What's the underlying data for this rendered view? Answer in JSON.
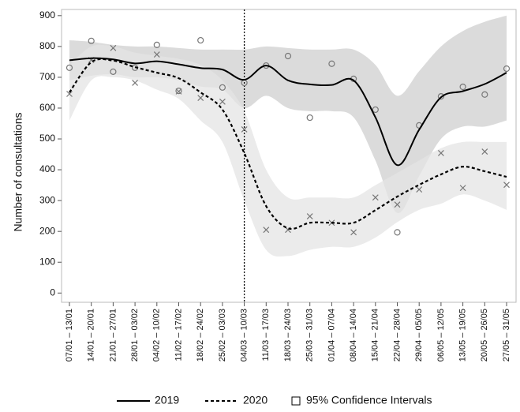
{
  "chart_data": {
    "type": "line",
    "ylabel": "Number of consultations",
    "categories": [
      "07/01 – 13/01",
      "14/01 – 20/01",
      "21/01 – 27/01",
      "28/01 – 03/02",
      "04/02 – 10/02",
      "11/02 – 17/02",
      "18/02 – 24/02",
      "25/02 – 03/03",
      "04/03 – 10/03",
      "11/03 – 17/03",
      "18/03 – 24/03",
      "25/03 – 31/03",
      "01/04 – 07/04",
      "08/04 – 14/04",
      "15/04 – 21/04",
      "22/04 – 28/04",
      "29/04 – 05/05",
      "06/05 – 12/05",
      "13/05 – 19/05",
      "20/05 – 26/05",
      "27/05 – 31/05"
    ],
    "series": [
      {
        "name": "2019",
        "color": "#000000",
        "dashed": false,
        "marker": "circle",
        "band_color": "#cfcfcf",
        "values": [
          755,
          762,
          758,
          745,
          752,
          742,
          730,
          725,
          692,
          738,
          690,
          677,
          675,
          690,
          570,
          415,
          530,
          635,
          655,
          678,
          715
        ],
        "observed": [
          731,
          818,
          718,
          731,
          805,
          656,
          820,
          667,
          682,
          738,
          769,
          569,
          744,
          695,
          595,
          197,
          544,
          638,
          669,
          644,
          728
        ],
        "ci_lower": [
          690,
          705,
          710,
          700,
          700,
          690,
          670,
          660,
          600,
          640,
          600,
          590,
          590,
          570,
          430,
          260,
          380,
          500,
          540,
          540,
          560
        ],
        "ci_upper": [
          820,
          815,
          805,
          800,
          800,
          795,
          790,
          790,
          790,
          800,
          795,
          790,
          790,
          790,
          740,
          640,
          720,
          800,
          850,
          880,
          900
        ]
      },
      {
        "name": "2020",
        "color": "#000000",
        "dashed": true,
        "marker": "cross",
        "band_color": "#e4e4e4",
        "values": [
          651,
          749,
          754,
          733,
          715,
          697,
          651,
          595,
          454,
          282,
          210,
          228,
          228,
          228,
          269,
          313,
          351,
          385,
          410,
          395,
          377
        ],
        "observed": [
          646,
          756,
          795,
          682,
          774,
          654,
          633,
          621,
          531,
          205,
          205,
          249,
          228,
          197,
          310,
          287,
          336,
          454,
          341,
          459,
          351
        ],
        "ci_lower": [
          560,
          690,
          700,
          690,
          660,
          630,
          560,
          490,
          300,
          140,
          120,
          140,
          150,
          150,
          180,
          230,
          270,
          290,
          320,
          300,
          270
        ],
        "ci_upper": [
          740,
          800,
          800,
          780,
          770,
          760,
          740,
          690,
          590,
          400,
          310,
          310,
          310,
          310,
          350,
          390,
          430,
          470,
          490,
          490,
          490
        ]
      }
    ],
    "ci_label": "95% Confidence Intervals",
    "vline_at": "04/03 – 10/03",
    "ylim": [
      -30,
      920
    ],
    "yticks": [
      0,
      100,
      200,
      300,
      400,
      500,
      600,
      700,
      800,
      900
    ]
  }
}
